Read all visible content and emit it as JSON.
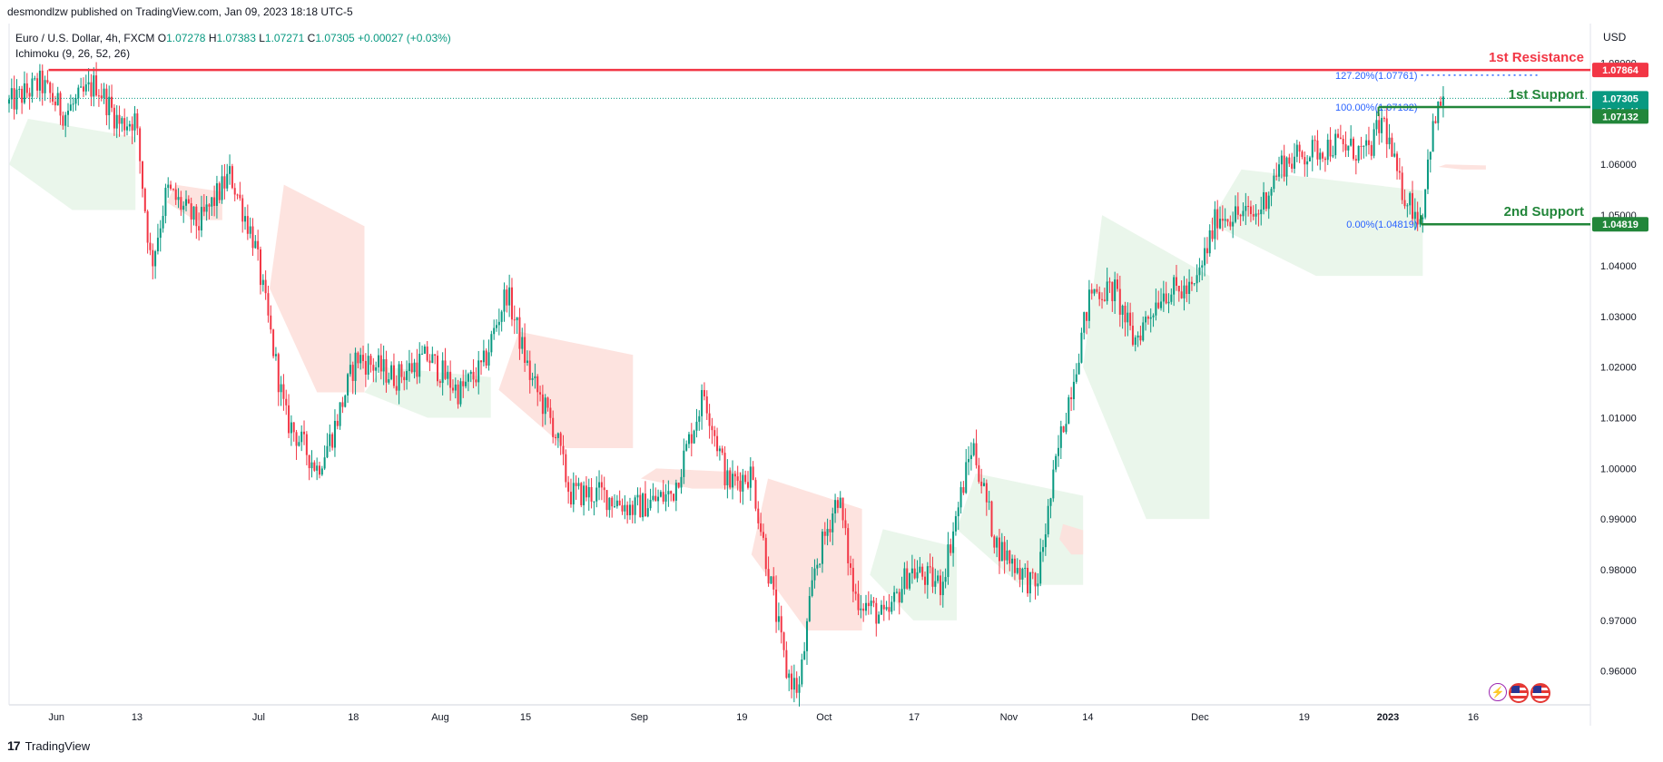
{
  "publisher": "desmondlzw published on TradingView.com, Jan 09, 2023 18:18 UTC-5",
  "legend": {
    "symbol": "Euro / U.S. Dollar, 4h, FXCM",
    "open_label": "O",
    "open": "1.07278",
    "high_label": "H",
    "high": "1.07383",
    "low_label": "L",
    "low": "1.07271",
    "close_label": "C",
    "close": "1.07305",
    "change": "+0.00027 (+0.03%)",
    "indicator": "Ichimoku (9, 26, 52, 26)"
  },
  "currency": "USD",
  "footer": {
    "logo": "TradingView",
    "logo_mark": "17"
  },
  "icons": [
    "lightning-icon",
    "us-flag-icon",
    "us-flag-icon"
  ],
  "chart_data": {
    "type": "candlestick",
    "symbol": "EURUSD",
    "timeframe": "4h",
    "ylim": [
      0.9535,
      1.0835
    ],
    "y_ticks": [
      "1.08000",
      "1.07000",
      "1.06000",
      "1.05000",
      "1.04000",
      "1.03000",
      "1.02000",
      "1.01000",
      "1.00000",
      "0.99000",
      "0.98000",
      "0.97000",
      "0.96000"
    ],
    "x_ticks": [
      {
        "label": "Jun",
        "t": 0.03
      },
      {
        "label": "13",
        "t": 0.081
      },
      {
        "label": "Jul",
        "t": 0.158
      },
      {
        "label": "18",
        "t": 0.218
      },
      {
        "label": "Aug",
        "t": 0.273
      },
      {
        "label": "15",
        "t": 0.327
      },
      {
        "label": "Sep",
        "t": 0.399
      },
      {
        "label": "19",
        "t": 0.464
      },
      {
        "label": "Oct",
        "t": 0.516
      },
      {
        "label": "17",
        "t": 0.573
      },
      {
        "label": "Nov",
        "t": 0.633
      },
      {
        "label": "14",
        "t": 0.683
      },
      {
        "label": "Dec",
        "t": 0.754
      },
      {
        "label": "19",
        "t": 0.82
      },
      {
        "label": "2023",
        "t": 0.873
      },
      {
        "label": "16",
        "t": 0.927
      }
    ],
    "price_path": [
      [
        0.0,
        1.072
      ],
      [
        0.02,
        1.076
      ],
      [
        0.035,
        1.07
      ],
      [
        0.055,
        1.076
      ],
      [
        0.07,
        1.068
      ],
      [
        0.08,
        1.069
      ],
      [
        0.09,
        1.04
      ],
      [
        0.1,
        1.055
      ],
      [
        0.12,
        1.048
      ],
      [
        0.14,
        1.058
      ],
      [
        0.155,
        1.045
      ],
      [
        0.175,
        1.01
      ],
      [
        0.195,
        1.0
      ],
      [
        0.205,
        1.007
      ],
      [
        0.22,
        1.022
      ],
      [
        0.245,
        1.018
      ],
      [
        0.265,
        1.022
      ],
      [
        0.285,
        1.015
      ],
      [
        0.3,
        1.02
      ],
      [
        0.315,
        1.035
      ],
      [
        0.33,
        1.018
      ],
      [
        0.345,
        1.008
      ],
      [
        0.355,
        0.995
      ],
      [
        0.375,
        0.995
      ],
      [
        0.395,
        0.992
      ],
      [
        0.42,
        0.995
      ],
      [
        0.44,
        1.015
      ],
      [
        0.455,
        0.997
      ],
      [
        0.47,
        0.999
      ],
      [
        0.48,
        0.981
      ],
      [
        0.492,
        0.96
      ],
      [
        0.5,
        0.956
      ],
      [
        0.51,
        0.98
      ],
      [
        0.525,
        0.995
      ],
      [
        0.535,
        0.975
      ],
      [
        0.555,
        0.97
      ],
      [
        0.57,
        0.98
      ],
      [
        0.59,
        0.977
      ],
      [
        0.61,
        1.005
      ],
      [
        0.625,
        0.985
      ],
      [
        0.64,
        0.98
      ],
      [
        0.65,
        0.976
      ],
      [
        0.665,
        1.005
      ],
      [
        0.685,
        1.035
      ],
      [
        0.7,
        1.035
      ],
      [
        0.712,
        1.025
      ],
      [
        0.73,
        1.035
      ],
      [
        0.75,
        1.035
      ],
      [
        0.765,
        1.05
      ],
      [
        0.79,
        1.05
      ],
      [
        0.805,
        1.06
      ],
      [
        0.82,
        1.062
      ],
      [
        0.84,
        1.064
      ],
      [
        0.86,
        1.062
      ],
      [
        0.87,
        1.069
      ],
      [
        0.88,
        1.056
      ],
      [
        0.894,
        1.049
      ],
      [
        0.9,
        1.065
      ],
      [
        0.908,
        1.074
      ]
    ],
    "ichimoku_cloud": [
      {
        "color": "#e8f5e9",
        "t0": 0.0,
        "t1": 0.08,
        "top": 1.069,
        "bot": 1.051
      },
      {
        "color": "#fde0dc",
        "t0": 0.1,
        "t1": 0.135,
        "top": 1.056,
        "bot": 1.049
      },
      {
        "color": "#fde0dc",
        "t0": 0.165,
        "t1": 0.225,
        "top": 1.056,
        "bot": 1.015
      },
      {
        "color": "#e8f5e9",
        "t0": 0.225,
        "t1": 0.305,
        "top": 1.02,
        "bot": 1.01
      },
      {
        "color": "#fde0dc",
        "t0": 0.31,
        "t1": 0.395,
        "top": 1.027,
        "bot": 1.004
      },
      {
        "color": "#fde0dc",
        "t0": 0.4,
        "t1": 0.465,
        "top": 1.0,
        "bot": 0.996
      },
      {
        "color": "#fde0dc",
        "t0": 0.47,
        "t1": 0.54,
        "top": 0.998,
        "bot": 0.968
      },
      {
        "color": "#e8f5e9",
        "t0": 0.545,
        "t1": 0.6,
        "top": 0.988,
        "bot": 0.97
      },
      {
        "color": "#e8f5e9",
        "t0": 0.6,
        "t1": 0.68,
        "top": 0.999,
        "bot": 0.977
      },
      {
        "color": "#fde0dc",
        "t0": 0.665,
        "t1": 0.68,
        "top": 0.989,
        "bot": 0.983
      },
      {
        "color": "#e8f5e9",
        "t0": 0.68,
        "t1": 0.76,
        "top": 1.05,
        "bot": 0.99
      },
      {
        "color": "#e8f5e9",
        "t0": 0.76,
        "t1": 0.895,
        "top": 1.059,
        "bot": 1.038
      },
      {
        "color": "#fde0dc",
        "t0": 0.905,
        "t1": 0.935,
        "top": 1.06,
        "bot": 1.059
      }
    ],
    "levels": [
      {
        "name": "1st Resistance",
        "price": 1.07864,
        "label": "1.07864",
        "color": "#f23645",
        "t0": 0.025
      },
      {
        "name": "1st Support",
        "price": 1.07132,
        "label": "1.07132",
        "color": "#22863a",
        "t0": 0.867
      },
      {
        "name": "2nd Support",
        "price": 1.04819,
        "label": "1.04819",
        "color": "#22863a",
        "t0": 0.894
      }
    ],
    "current_price": {
      "price": 1.07305,
      "label": "1.07305",
      "countdown": "02:41:41",
      "color": "#089981"
    },
    "fibonacci": [
      {
        "label": "127.20%(1.07761)",
        "price": 1.07761
      },
      {
        "label": "100.00%(1.07132)",
        "price": 1.07132
      },
      {
        "label": "0.00%(1.04819)",
        "price": 1.04819
      }
    ],
    "colors": {
      "up": "#089981",
      "down": "#f23645",
      "fib": "#2962ff"
    }
  }
}
